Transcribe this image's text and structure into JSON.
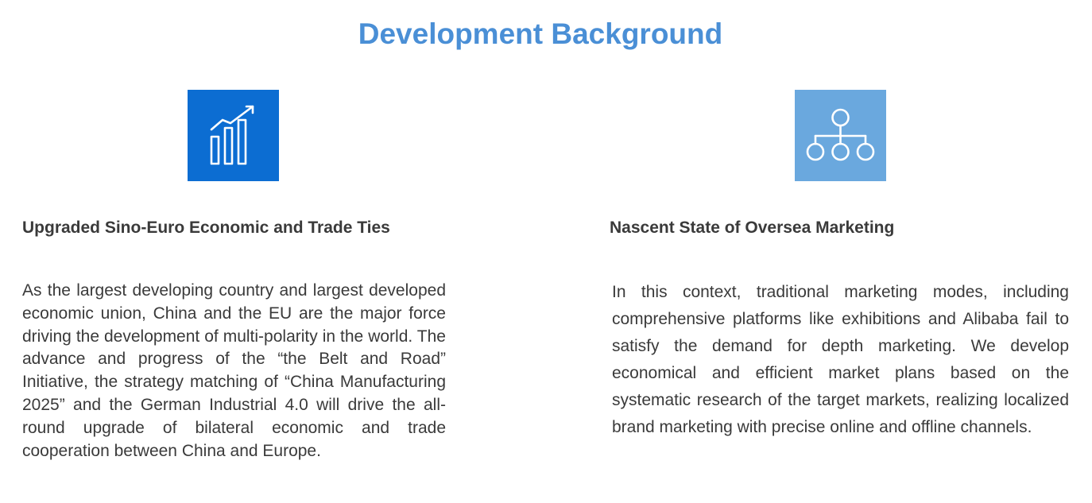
{
  "page": {
    "title": "Development Background"
  },
  "colors": {
    "title": "#4a8fd6",
    "icon_left_bg": "#0c6dd2",
    "icon_right_bg": "#6aa8de",
    "text": "#3a3a3a"
  },
  "columns": [
    {
      "icon": "growth-chart-icon",
      "heading": "Upgraded Sino-Euro Economic and Trade Ties",
      "body": "As the largest developing country and largest developed economic union, China and the EU are the major force driving the development of multi-polarity in the world. The advance and progress of the “the Belt and Road” Initiative, the strategy matching of “China Manufacturing 2025” and the German Industrial 4.0 will drive the all-round upgrade of bilateral economic and trade cooperation between China and Europe."
    },
    {
      "icon": "hierarchy-network-icon",
      "heading": "Nascent State of Oversea Marketing",
      "body": "In this context, traditional marketing modes, including comprehensive platforms like exhibitions and Alibaba fail to satisfy the demand for depth marketing. We develop economical and efficient market plans based on the systematic research of the target markets, realizing localized brand marketing with precise online and offline channels."
    }
  ]
}
